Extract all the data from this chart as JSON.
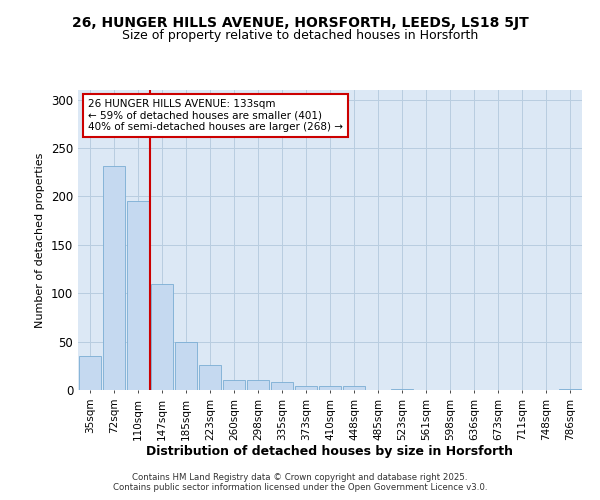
{
  "title1": "26, HUNGER HILLS AVENUE, HORSFORTH, LEEDS, LS18 5JT",
  "title2": "Size of property relative to detached houses in Horsforth",
  "xlabel": "Distribution of detached houses by size in Horsforth",
  "ylabel": "Number of detached properties",
  "categories": [
    "35sqm",
    "72sqm",
    "110sqm",
    "147sqm",
    "185sqm",
    "223sqm",
    "260sqm",
    "298sqm",
    "335sqm",
    "373sqm",
    "410sqm",
    "448sqm",
    "485sqm",
    "523sqm",
    "561sqm",
    "598sqm",
    "636sqm",
    "673sqm",
    "711sqm",
    "748sqm",
    "786sqm"
  ],
  "values": [
    35,
    231,
    195,
    110,
    50,
    26,
    10,
    10,
    8,
    4,
    4,
    4,
    0,
    1,
    0,
    0,
    0,
    0,
    0,
    0,
    1
  ],
  "bar_color": "#c5d9f0",
  "bar_edge_color": "#7aadd4",
  "vline_x_index": 2.5,
  "vline_color": "#cc0000",
  "annotation_line1": "26 HUNGER HILLS AVENUE: 133sqm",
  "annotation_line2": "← 59% of detached houses are smaller (401)",
  "annotation_line3": "40% of semi-detached houses are larger (268) →",
  "annotation_box_color": "#ffffff",
  "annotation_box_edge": "#cc0000",
  "ylim": [
    0,
    310
  ],
  "yticks": [
    0,
    50,
    100,
    150,
    200,
    250,
    300
  ],
  "grid_color": "#b8cde0",
  "background_color": "#dce8f5",
  "fig_background": "#ffffff",
  "footer": "Contains HM Land Registry data © Crown copyright and database right 2025.\nContains public sector information licensed under the Open Government Licence v3.0.",
  "title_fontsize": 10,
  "subtitle_fontsize": 9,
  "ylabel_fontsize": 8,
  "xlabel_fontsize": 9
}
